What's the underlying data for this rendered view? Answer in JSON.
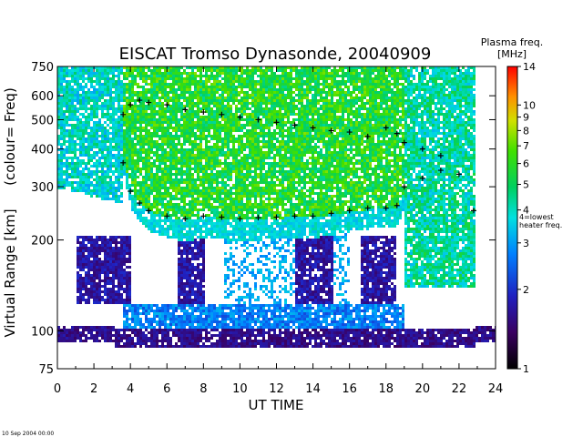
{
  "chart_data": {
    "type": "heatmap",
    "title": "EISCAT Tromso Dynasonde,  20040909",
    "xlabel": "UT TIME",
    "ylabel_main": "Virtual Range [km]",
    "ylabel_secondary": "(colour= Freq)",
    "xlim": [
      0,
      24
    ],
    "x_ticks": [
      "0",
      "2",
      "4",
      "6",
      "8",
      "10",
      "12",
      "14",
      "16",
      "18",
      "20",
      "22",
      "24"
    ],
    "y_scale": "log",
    "ylim": [
      75,
      750
    ],
    "y_ticks": [
      "75",
      "100",
      "200",
      "300",
      "400",
      "500",
      "600",
      "750"
    ],
    "colorbar": {
      "title": "Plasma freq.",
      "units": "[MHz]",
      "scale": "log",
      "range": [
        1,
        14
      ],
      "ticks": [
        "1",
        "2",
        "3",
        "4",
        "5",
        "6",
        "7",
        "8",
        "9",
        "10",
        "14"
      ],
      "annotation": [
        "4=lowest",
        "heater freq."
      ]
    },
    "series": [
      {
        "name": "",
        "marker": "+",
        "color": "#000000",
        "x": [
          3.6,
          4.0,
          4.5,
          5.0,
          6.0,
          7.0,
          8.0,
          9.0,
          10.0,
          11.0,
          12.0,
          13.0,
          14.0,
          15.0,
          16.0,
          17.0,
          18.0,
          18.6,
          19.0,
          20.0,
          21.0,
          22.0,
          22.8
        ],
        "y": [
          360,
          290,
          265,
          250,
          240,
          235,
          240,
          238,
          235,
          237,
          238,
          240,
          240,
          245,
          250,
          255,
          255,
          260,
          300,
          320,
          340,
          330,
          250
        ]
      },
      {
        "name": "",
        "marker": "+",
        "color": "#000000",
        "x": [
          3.6,
          4.0,
          4.5,
          5.0,
          6.0,
          7.0,
          8.0,
          9.0,
          10.0,
          11.0,
          12.0,
          13.0,
          14.0,
          15.0,
          16.0,
          17.0,
          18.0,
          18.6,
          19.0,
          20.0,
          21.0
        ],
        "y": [
          520,
          560,
          580,
          570,
          560,
          540,
          530,
          520,
          510,
          500,
          490,
          480,
          470,
          460,
          455,
          440,
          470,
          450,
          420,
          400,
          380
        ]
      }
    ]
  },
  "footer_timestamp": "10 Sep 2004 00:00"
}
